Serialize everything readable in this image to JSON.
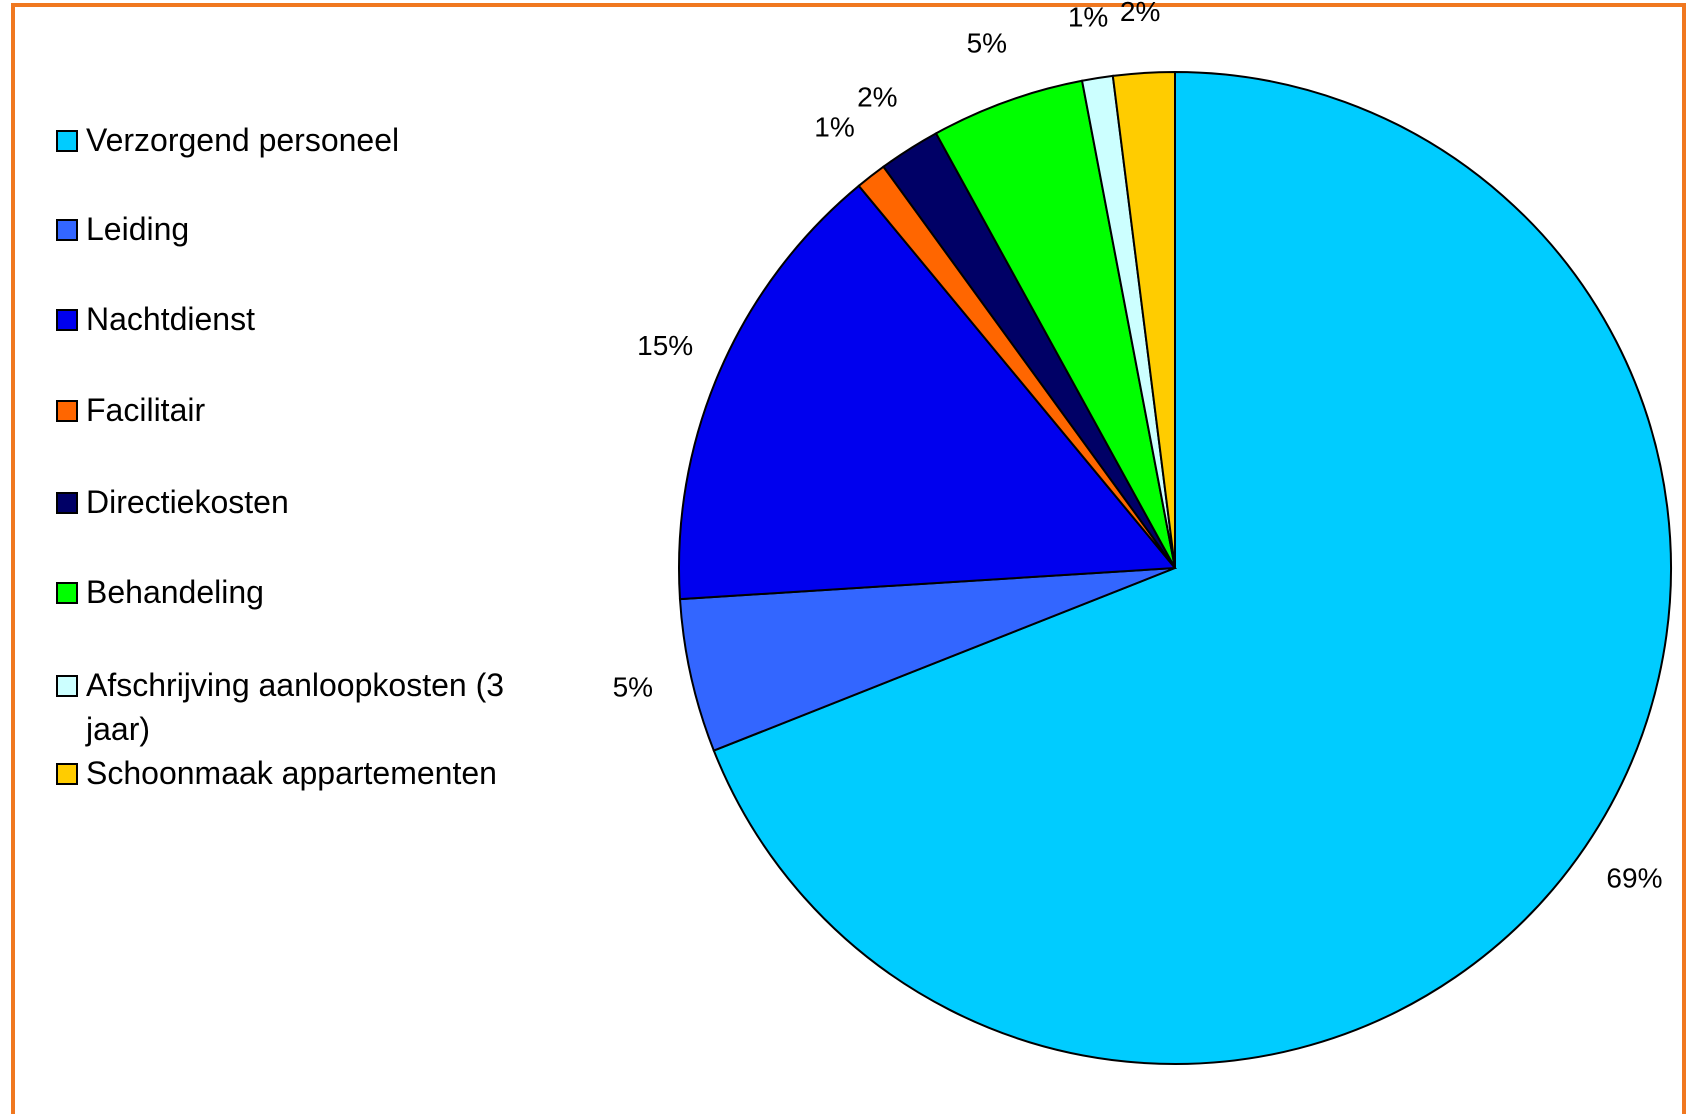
{
  "chart_data": {
    "type": "pie",
    "categories": [
      "Verzorgend personeel",
      "Leiding",
      "Nachtdienst",
      "Facilitair",
      "Directiekosten",
      "Behandeling",
      "Afschrijving aanloopkosten (3 jaar)",
      "Schoonmaak appartementen"
    ],
    "values": [
      69,
      5,
      15,
      1,
      2,
      5,
      1,
      2
    ],
    "value_labels": [
      "69%",
      "5%",
      "15%",
      "1%",
      "2%",
      "5%",
      "1%",
      "2%"
    ],
    "colors": [
      "#00ccff",
      "#3366ff",
      "#0000ee",
      "#ff6600",
      "#000066",
      "#00ff00",
      "#ccffff",
      "#ffcc00"
    ],
    "legend": "left"
  }
}
